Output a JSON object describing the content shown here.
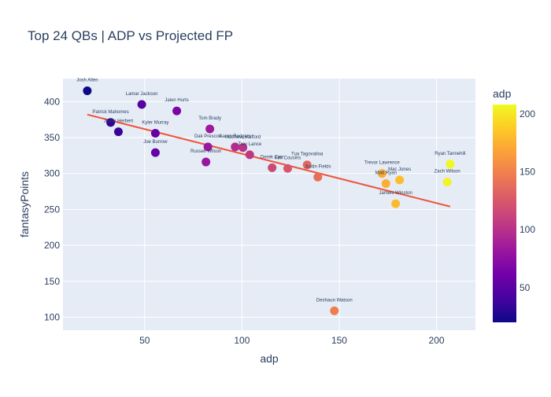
{
  "chart_data": {
    "type": "scatter",
    "title": "Top 24 QBs | ADP vs Projected FP",
    "xlabel": "adp",
    "ylabel": "fantasyPoints",
    "xlim": [
      8,
      220
    ],
    "ylim": [
      82,
      432
    ],
    "x_ticks": [
      50,
      100,
      150,
      200
    ],
    "y_ticks": [
      100,
      150,
      200,
      250,
      300,
      350,
      400
    ],
    "grid": true,
    "colorbar": {
      "title": "adp",
      "range": [
        20,
        208
      ],
      "ticks": [
        50,
        100,
        150,
        200
      ],
      "colorscale": "plasma"
    },
    "trendline": {
      "x": [
        20.5,
        207
      ],
      "y": [
        382,
        254
      ],
      "color": "#EF553B"
    },
    "points": [
      {
        "name": "Josh Allen",
        "x": 20.5,
        "y": 415
      },
      {
        "name": "Patrick Mahomes",
        "x": 32.5,
        "y": 371
      },
      {
        "name": "Justin Herbert",
        "x": 36.5,
        "y": 358
      },
      {
        "name": "Lamar Jackson",
        "x": 48.5,
        "y": 396
      },
      {
        "name": "Kyler Murray",
        "x": 55.5,
        "y": 356
      },
      {
        "name": "Joe Burrow",
        "x": 55.5,
        "y": 329
      },
      {
        "name": "Jalen Hurts",
        "x": 66.5,
        "y": 387
      },
      {
        "name": "Tom Brady",
        "x": 83.5,
        "y": 362
      },
      {
        "name": "Dak Prescott",
        "x": 82.5,
        "y": 337
      },
      {
        "name": "Russell Wilson",
        "x": 81.5,
        "y": 316
      },
      {
        "name": "Aaron Rodgers",
        "x": 96.5,
        "y": 337
      },
      {
        "name": "Matthew Stafford",
        "x": 100.5,
        "y": 336
      },
      {
        "name": "Trey Lance",
        "x": 104,
        "y": 326
      },
      {
        "name": "Derek Carr",
        "x": 115.5,
        "y": 308
      },
      {
        "name": "Kirk Cousins",
        "x": 123.5,
        "y": 307
      },
      {
        "name": "Tua Tagovailoa",
        "x": 133.5,
        "y": 312
      },
      {
        "name": "Justin Fields",
        "x": 139,
        "y": 295
      },
      {
        "name": "Deshaun Watson",
        "x": 147.5,
        "y": 109
      },
      {
        "name": "Trevor Lawrence",
        "x": 172,
        "y": 300
      },
      {
        "name": "Matt Ryan",
        "x": 174,
        "y": 286
      },
      {
        "name": "Mac Jones",
        "x": 181,
        "y": 291
      },
      {
        "name": "Jameis Winston",
        "x": 179,
        "y": 258
      },
      {
        "name": "Ryan Tannehill",
        "x": 207,
        "y": 313
      },
      {
        "name": "Zach Wilson",
        "x": 205.5,
        "y": 288
      }
    ]
  },
  "labels": [
    {
      "text": "Josh Allen"
    },
    {
      "text": "Patrick Mahomes"
    },
    {
      "text": "Justin Herbert"
    },
    {
      "text": "Lamar Jackson"
    },
    {
      "text": "Kyler Murray"
    },
    {
      "text": "Joe Burrow"
    },
    {
      "text": "Jalen Hurts"
    },
    {
      "text": "Tom Brady"
    },
    {
      "text": "Dak Prescott"
    },
    {
      "text": "Russell Wilson"
    },
    {
      "text": "Aaron Rodgers"
    },
    {
      "text": "Matthew Stafford"
    },
    {
      "text": "Trey Lance"
    },
    {
      "text": "Derek Carr"
    },
    {
      "text": "Kirk Cousins"
    },
    {
      "text": "Tua Tagovailoa"
    },
    {
      "text": "Justin Fields"
    },
    {
      "text": "Deshaun Watson"
    },
    {
      "text": "Trevor Lawrence"
    },
    {
      "text": "Matt Ryan"
    },
    {
      "text": "Mac Jones"
    },
    {
      "text": "Jameis Winston"
    },
    {
      "text": "Ryan Tannehill"
    },
    {
      "text": "Zach Wilson"
    }
  ]
}
